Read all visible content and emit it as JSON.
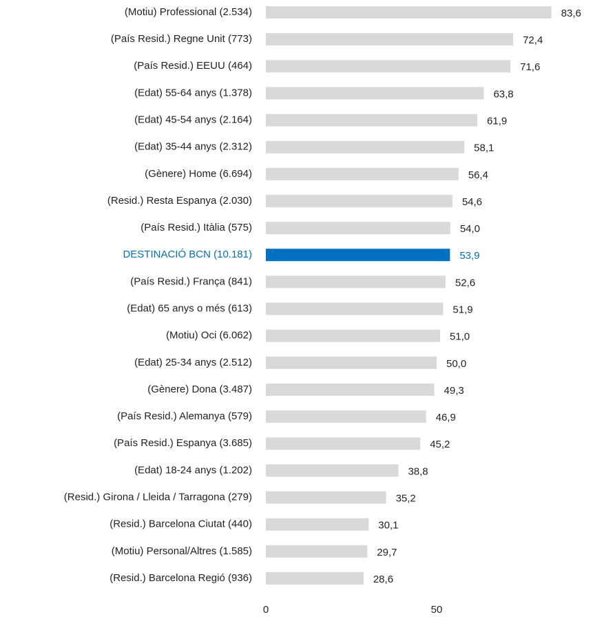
{
  "chart_data": {
    "type": "barh",
    "categories": [
      "(Motiu) Professional (2.534)",
      "(País Resid.) Regne Unit (773)",
      "(País Resid.) EEUU (464)",
      "(Edat) 55-64 anys (1.378)",
      "(Edat) 45-54 anys (2.164)",
      "(Edat) 35-44 anys (2.312)",
      "(Gènere) Home (6.694)",
      "(Resid.) Resta Espanya (2.030)",
      "(País Resid.) Itàlia (575)",
      "DESTINACIÓ BCN (10.181)",
      "(País Resid.) França (841)",
      "(Edat) 65 anys o més (613)",
      "(Motiu) Oci (6.062)",
      "(Edat) 25-34 anys  (2.512)",
      "(Gènere) Dona (3.487)",
      "(País Resid.) Alemanya (579)",
      "(País Resid.) Espanya (3.685)",
      "(Edat) 18-24 anys (1.202)",
      "(Resid.) Girona / Lleida / Tarragona (279)",
      "(Resid.) Barcelona Ciutat (440)",
      "(Motiu) Personal/Altres (1.585)",
      "(Resid.) Barcelona Regió (936)"
    ],
    "values": [
      83.6,
      72.4,
      71.6,
      63.8,
      61.9,
      58.1,
      56.4,
      54.6,
      54.0,
      53.9,
      52.6,
      51.9,
      51.0,
      50.0,
      49.3,
      46.9,
      45.2,
      38.8,
      35.2,
      30.1,
      29.7,
      28.6
    ],
    "value_labels": [
      "83,6",
      "72,4",
      "71,6",
      "63,8",
      "61,9",
      "58,1",
      "56,4",
      "54,6",
      "54,0",
      "53,9",
      "52,6",
      "51,9",
      "51,0",
      "50,0",
      "49,3",
      "46,9",
      "45,2",
      "38,8",
      "35,2",
      "30,1",
      "29,7",
      "28,6"
    ],
    "color": "#d9d9d9",
    "colors": [
      "#d9d9d9",
      "#d9d9d9",
      "#d9d9d9",
      "#d9d9d9",
      "#d9d9d9",
      "#d9d9d9",
      "#d9d9d9",
      "#d9d9d9",
      "#d9d9d9",
      "#0070c0",
      "#d9d9d9",
      "#d9d9d9",
      "#d9d9d9",
      "#d9d9d9",
      "#d9d9d9",
      "#d9d9d9",
      "#d9d9d9",
      "#d9d9d9",
      "#d9d9d9",
      "#d9d9d9",
      "#d9d9d9",
      "#d9d9d9"
    ],
    "xlim": [
      0,
      90
    ],
    "xticks": [
      0,
      50
    ],
    "grid": false
  }
}
